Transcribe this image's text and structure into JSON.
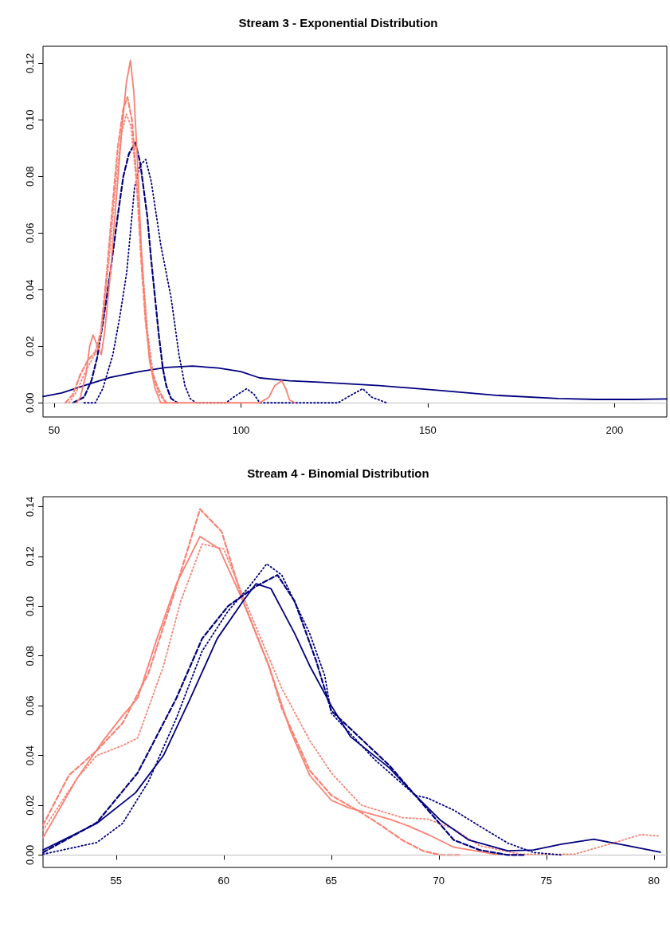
{
  "chart_data": [
    {
      "type": "line",
      "title": "Stream 3 - Exponential Distribution",
      "xlim": [
        47,
        214
      ],
      "xticks": [
        50,
        100,
        150,
        200
      ],
      "ylim": [
        -0.005,
        0.126
      ],
      "yticks": [
        {
          "value": 0,
          "label": "0.00"
        },
        {
          "value": 0.02,
          "label": "0.02"
        },
        {
          "value": 0.04,
          "label": "0.04"
        },
        {
          "value": 0.06,
          "label": "0.06"
        },
        {
          "value": 0.08,
          "label": "0.08"
        },
        {
          "value": 0.1,
          "label": "0.10"
        },
        {
          "value": 0.12,
          "label": "0.12"
        }
      ],
      "grid": false,
      "marker": "none",
      "ref_lines": [
        {
          "axis": "y",
          "value": 0,
          "color": "#bebebe"
        }
      ],
      "series": [
        {
          "color": "#000080",
          "line_style": "solid",
          "x": [
            47,
            52,
            58.7,
            65,
            72.8,
            80,
            87,
            94,
            100,
            105,
            113,
            121,
            137,
            153,
            169,
            185,
            195,
            205,
            214
          ],
          "values": [
            0.0022,
            0.0035,
            0.0064,
            0.009,
            0.011,
            0.0125,
            0.013,
            0.0123,
            0.011,
            0.0088,
            0.0078,
            0.0073,
            0.0061,
            0.0044,
            0.0026,
            0.0015,
            0.0012,
            0.0012,
            0.0014
          ]
        },
        {
          "color": "#000080",
          "line_style": "dashed",
          "x": [
            55,
            58,
            60,
            61.5,
            63,
            65,
            67,
            68.5,
            70,
            71.7,
            73,
            74.9,
            76,
            77,
            78,
            79.1,
            80,
            81.3,
            83
          ],
          "values": [
            0,
            0.002,
            0.008,
            0.016,
            0.028,
            0.046,
            0.066,
            0.08,
            0.088,
            0.092,
            0.085,
            0.066,
            0.05,
            0.037,
            0.024,
            0.012,
            0.006,
            0.0015,
            0
          ]
        },
        {
          "color": "#000080",
          "line_style": "dotted",
          "x": [
            58,
            61,
            63,
            65.7,
            67.5,
            69.4,
            71.5,
            73,
            74.5,
            76,
            78.5,
            81.3,
            83.4,
            85,
            86.4,
            88,
            96,
            98,
            101.5,
            103.5,
            105,
            126,
            128.5,
            132.6,
            135,
            139
          ],
          "values": [
            0,
            0,
            0.005,
            0.017,
            0.03,
            0.046,
            0.076,
            0.084,
            0.086,
            0.078,
            0.056,
            0.037,
            0.017,
            0.006,
            0.0015,
            0,
            0,
            0.002,
            0.005,
            0.003,
            0,
            0,
            0.002,
            0.005,
            0.002,
            0
          ]
        },
        {
          "color": "#fa8072",
          "line_style": "solid",
          "x": [
            56,
            57,
            58.5,
            59.5,
            60.4,
            61.3,
            62.6,
            63.5,
            65,
            66.5,
            68,
            69.3,
            70.4,
            71.3,
            72.3,
            73.3,
            74.5,
            75.5,
            77,
            78.5,
            105,
            107.5,
            109,
            110.9,
            112,
            113,
            114.5
          ],
          "values": [
            0,
            0.002,
            0.01,
            0.02,
            0.024,
            0.021,
            0.017,
            0.025,
            0.045,
            0.07,
            0.095,
            0.113,
            0.121,
            0.11,
            0.085,
            0.055,
            0.03,
            0.015,
            0.005,
            0,
            0,
            0.002,
            0.006,
            0.0078,
            0.005,
            0.001,
            0
          ]
        },
        {
          "color": "#fa8072",
          "line_style": "dashed",
          "x": [
            53,
            55,
            57,
            59,
            61,
            62.5,
            64,
            65.5,
            67,
            68.5,
            69.6,
            70.8,
            72,
            73.3,
            74.5,
            76,
            77.5,
            79,
            80
          ],
          "values": [
            0,
            0.003,
            0.01,
            0.015,
            0.018,
            0.025,
            0.045,
            0.068,
            0.09,
            0.104,
            0.108,
            0.1,
            0.08,
            0.05,
            0.028,
            0.012,
            0.006,
            0.002,
            0
          ]
        },
        {
          "color": "#fa8072",
          "line_style": "dotted",
          "x": [
            54,
            56,
            58,
            60,
            62,
            63.5,
            65,
            66.5,
            68,
            69.3,
            70.5,
            72,
            73.5,
            75,
            76.5,
            78,
            80
          ],
          "values": [
            0,
            0.004,
            0.01,
            0.015,
            0.02,
            0.035,
            0.055,
            0.078,
            0.095,
            0.102,
            0.098,
            0.078,
            0.05,
            0.025,
            0.01,
            0.003,
            0
          ]
        }
      ]
    },
    {
      "type": "line",
      "title": "Stream 4 - Binomial Distribution",
      "xlim": [
        51.6,
        80.6
      ],
      "xticks": [
        55,
        60,
        65,
        70,
        75,
        80
      ],
      "ylim": [
        -0.005,
        0.144
      ],
      "yticks": [
        {
          "value": 0,
          "label": "0.00"
        },
        {
          "value": 0.02,
          "label": "0.02"
        },
        {
          "value": 0.04,
          "label": "0.04"
        },
        {
          "value": 0.06,
          "label": "0.06"
        },
        {
          "value": 0.08,
          "label": "0.08"
        },
        {
          "value": 0.1,
          "label": "0.10"
        },
        {
          "value": 0.12,
          "label": "0.12"
        },
        {
          "value": 0.14,
          "label": "0.14"
        }
      ],
      "grid": false,
      "marker": "none",
      "ref_lines": [
        {
          "axis": "y",
          "value": 0,
          "color": "#bebebe"
        }
      ],
      "series": [
        {
          "color": "#fa8072",
          "line_style": "solid",
          "x": [
            51.6,
            53.2,
            54.4,
            55.3,
            56,
            56.9,
            57.8,
            58.9,
            59.8,
            60.9,
            62.1,
            63.1,
            64,
            65,
            65.8,
            67.7,
            68.6,
            69.5,
            70.7,
            72.6,
            73.8
          ],
          "values": [
            0.007,
            0.031,
            0.046,
            0.056,
            0.063,
            0.087,
            0.109,
            0.128,
            0.123,
            0.102,
            0.076,
            0.05,
            0.032,
            0.022,
            0.019,
            0.0144,
            0.0116,
            0.0082,
            0.0031,
            0.0003,
            0
          ]
        },
        {
          "color": "#fa8072",
          "line_style": "dashed",
          "x": [
            51.6,
            52.8,
            54.1,
            55.3,
            56.5,
            57.8,
            58.9,
            59.9,
            60.9,
            62.1,
            62.7,
            64,
            65,
            66.4,
            67.3,
            68.3,
            69.3,
            70.1,
            71
          ],
          "values": [
            0.012,
            0.032,
            0.042,
            0.053,
            0.073,
            0.108,
            0.139,
            0.13,
            0.102,
            0.076,
            0.059,
            0.034,
            0.024,
            0.017,
            0.012,
            0.006,
            0.0015,
            0,
            0
          ]
        },
        {
          "color": "#fa8072",
          "line_style": "dotted",
          "x": [
            51.6,
            53.2,
            54.1,
            55.3,
            56,
            57.2,
            58,
            59,
            60,
            61,
            62.7,
            64,
            65,
            66.4,
            68.3,
            69.5,
            70.7,
            71.9,
            73.8,
            76.3,
            78.1,
            79.4,
            80.3
          ],
          "values": [
            0.01,
            0.031,
            0.04,
            0.044,
            0.047,
            0.076,
            0.102,
            0.125,
            0.123,
            0.102,
            0.067,
            0.046,
            0.033,
            0.02,
            0.015,
            0.0144,
            0.0104,
            0.0037,
            0.0003,
            0.0003,
            0.0048,
            0.0082,
            0.0076
          ]
        },
        {
          "color": "#000080",
          "line_style": "solid",
          "x": [
            51.6,
            54.1,
            55.9,
            57.2,
            58.4,
            59.7,
            60.9,
            61.5,
            62.2,
            63.3,
            64,
            65,
            65.9,
            67.7,
            68.9,
            70.1,
            71.4,
            73.2,
            74.4,
            75.7,
            77.2,
            78.8,
            80.3
          ],
          "values": [
            0.002,
            0.0127,
            0.025,
            0.04,
            0.062,
            0.087,
            0.102,
            0.109,
            0.107,
            0.089,
            0.076,
            0.06,
            0.0475,
            0.035,
            0.024,
            0.0138,
            0.006,
            0.0017,
            0.002,
            0.0043,
            0.0063,
            0.0037,
            0.0011
          ]
        },
        {
          "color": "#000080",
          "line_style": "dotted",
          "x": [
            51.6,
            54.1,
            55.3,
            56.5,
            57.8,
            59,
            60.2,
            61.2,
            62,
            62.7,
            64,
            64.7,
            65,
            67,
            68.9,
            69.5,
            70.7,
            71.9,
            73.2,
            74.4,
            75.7
          ],
          "values": [
            0.0003,
            0.005,
            0.0127,
            0.0295,
            0.055,
            0.082,
            0.098,
            0.108,
            0.117,
            0.1125,
            0.089,
            0.072,
            0.057,
            0.0385,
            0.024,
            0.0228,
            0.018,
            0.0116,
            0.0048,
            0.001,
            0
          ]
        },
        {
          "color": "#000080",
          "line_style": "dashed",
          "x": [
            51.6,
            54.1,
            56,
            57.8,
            59,
            60.2,
            61.5,
            62.5,
            63.3,
            64.3,
            65,
            67.7,
            69.5,
            70.7,
            71.9,
            73.2,
            74
          ],
          "values": [
            0.001,
            0.013,
            0.033,
            0.063,
            0.087,
            0.1,
            0.108,
            0.1125,
            0.102,
            0.078,
            0.058,
            0.036,
            0.018,
            0.006,
            0.002,
            0,
            0
          ]
        }
      ]
    }
  ]
}
